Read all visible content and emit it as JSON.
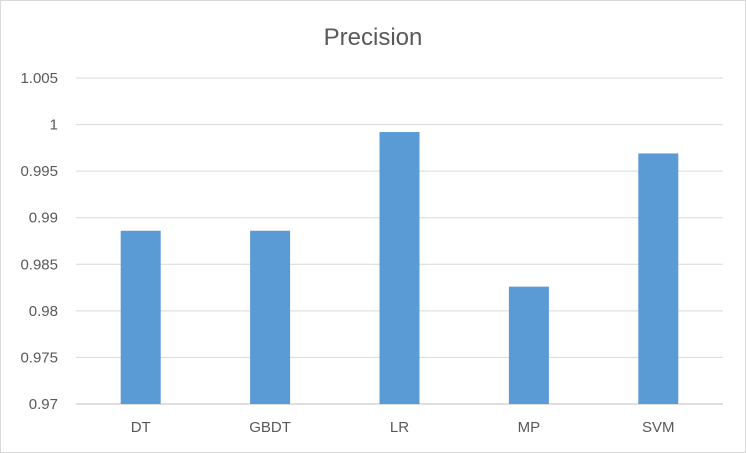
{
  "chart_data": {
    "type": "bar",
    "title": "Precision",
    "xlabel": "",
    "ylabel": "",
    "categories": [
      "DT",
      "GBDT",
      "LR",
      "MP",
      "SVM"
    ],
    "values": [
      0.9886,
      0.9886,
      0.9992,
      0.9826,
      0.9969
    ],
    "ylim": [
      0.97,
      1.005
    ],
    "yticks": [
      0.97,
      0.975,
      0.98,
      0.985,
      0.99,
      0.995,
      1,
      1.005
    ],
    "ytick_labels": [
      "0.97",
      "0.975",
      "0.98",
      "0.985",
      "0.99",
      "0.995",
      "1",
      "1.005"
    ],
    "grid": true,
    "legend": "none",
    "bar_color": "#5b9bd5"
  }
}
